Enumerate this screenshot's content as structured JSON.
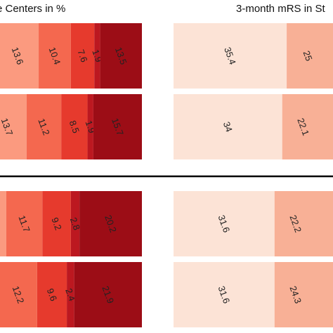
{
  "chart_data": [
    {
      "type": "bar",
      "orientation": "horizontal-stacked",
      "title": "e Centers in %",
      "rows": [
        {
          "values": [
            13.6,
            10.4,
            7.6,
            1.9,
            13.5
          ],
          "labels": [
            "13.6",
            "10.4",
            "7.6",
            "1.9",
            "13.5"
          ]
        },
        {
          "values": [
            13.7,
            11.2,
            8.5,
            1.9,
            15.7
          ],
          "labels": [
            "13.7",
            "11.2",
            "8.5",
            "1.9",
            "15.7"
          ]
        },
        {
          "values": [
            11.7,
            9.2,
            2.8,
            20.2
          ],
          "labels": [
            "11.7",
            "9.2",
            "2.8",
            "20.2"
          ]
        },
        {
          "values": [
            12.2,
            9.6,
            2.4,
            21.9
          ],
          "labels": [
            "12.2",
            "9.6",
            "2.4",
            "21.9"
          ]
        }
      ]
    },
    {
      "type": "bar",
      "orientation": "horizontal-stacked",
      "title": "3-month mRS in St",
      "rows": [
        {
          "values": [
            35.4,
            25
          ],
          "labels": [
            "35.4",
            "25"
          ]
        },
        {
          "values": [
            34,
            22.1
          ],
          "labels": [
            "34",
            "22.1"
          ]
        },
        {
          "values": [
            31.6,
            22.2
          ],
          "labels": [
            "31.6",
            "22.2"
          ]
        },
        {
          "values": [
            31.6,
            24.3
          ],
          "labels": [
            "31.6",
            "24.3"
          ]
        }
      ]
    }
  ],
  "colors": {
    "left_segments": [
      "#fb9a7f",
      "#f4684f",
      "#e63a2d",
      "#bc1820",
      "#9c0d16"
    ],
    "left_segments_lower": [
      "#f4684f",
      "#e63a2d",
      "#bc1820",
      "#9c0d16"
    ],
    "right_segments": [
      "#fce3d6",
      "#f8b096"
    ],
    "divider": "#000000"
  }
}
